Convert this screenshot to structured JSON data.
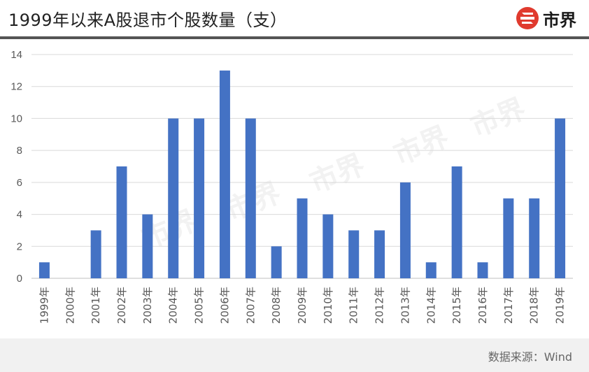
{
  "header": {
    "title": "1999年以来A股退市个股数量（支）",
    "logo_text": "市界",
    "accent_color": "#e03a2e"
  },
  "footer": {
    "source": "数据来源：Wind"
  },
  "watermark": {
    "text": "市界"
  },
  "chart_data": {
    "type": "bar",
    "categories": [
      "1999年",
      "2000年",
      "2001年",
      "2002年",
      "2003年",
      "2004年",
      "2005年",
      "2006年",
      "2007年",
      "2008年",
      "2009年",
      "2010年",
      "2011年",
      "2012年",
      "2013年",
      "2014年",
      "2015年",
      "2016年",
      "2017年",
      "2018年",
      "2019年"
    ],
    "values": [
      1,
      0,
      3,
      7,
      4,
      10,
      10,
      13,
      10,
      2,
      5,
      4,
      3,
      3,
      6,
      1,
      7,
      1,
      5,
      5,
      10
    ],
    "ylim": [
      0,
      14
    ],
    "yticks": [
      0,
      2,
      4,
      6,
      8,
      10,
      12,
      14
    ],
    "grid": true,
    "bar_color": "#4472c4",
    "legend": "none"
  }
}
